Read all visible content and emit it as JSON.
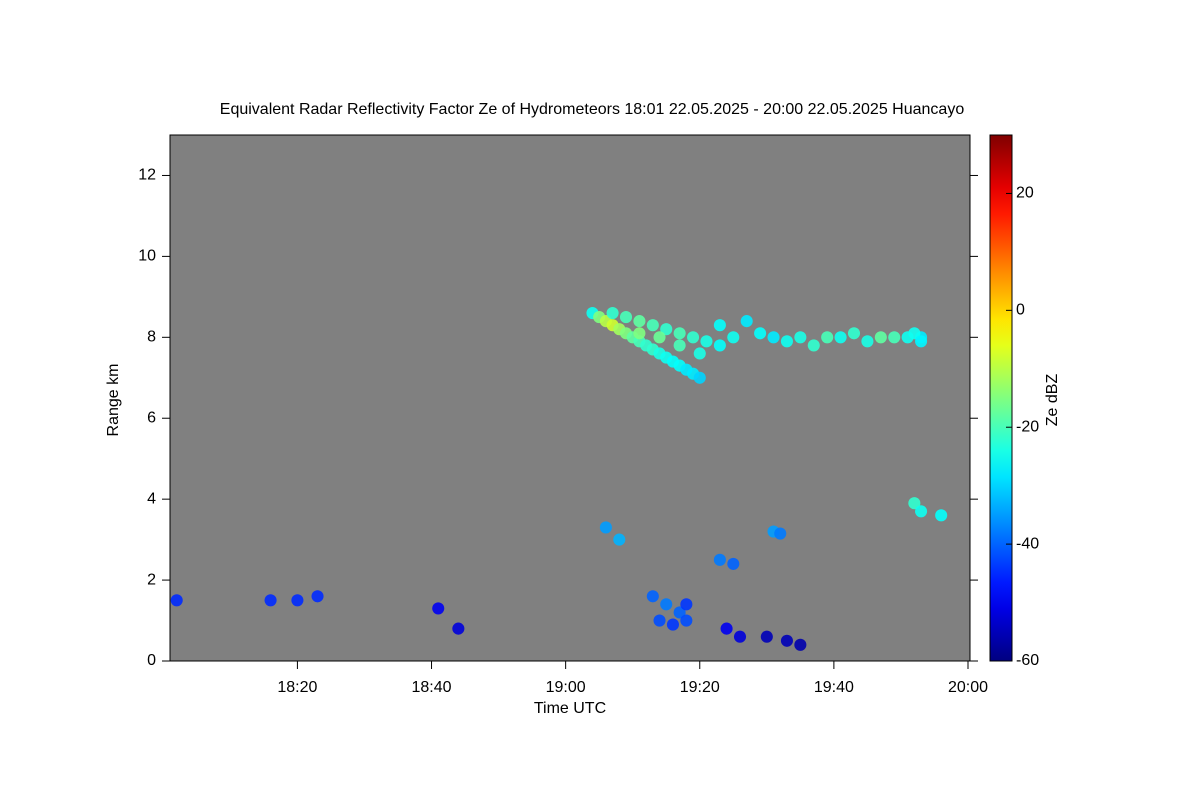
{
  "chart_data": {
    "type": "heatmap",
    "title": "Equivalent Radar Reflectivity Factor Ze of Hydrometeors   18:01 22.05.2025 - 20:00 22.05.2025 Huancayo",
    "x_label": "Time UTC",
    "y_label": "Range km",
    "colorbar_label": "Ze dBZ",
    "xlim": [
      1081,
      1200
    ],
    "xticks": [
      {
        "value": 1100,
        "label": "18:20"
      },
      {
        "value": 1120,
        "label": "18:40"
      },
      {
        "value": 1140,
        "label": "19:00"
      },
      {
        "value": 1160,
        "label": "19:20"
      },
      {
        "value": 1180,
        "label": "19:40"
      },
      {
        "value": 1200,
        "label": "20:00"
      }
    ],
    "ylim": [
      0,
      13
    ],
    "yticks": [
      0,
      2,
      4,
      6,
      8,
      10,
      12
    ],
    "zlim": [
      -60,
      30
    ],
    "zticks": [
      -60,
      -40,
      -20,
      0,
      20
    ],
    "colormap": "jet",
    "background": "#808080",
    "x": [
      1144,
      1145,
      1146,
      1147,
      1148,
      1149,
      1150,
      1151,
      1152,
      1153,
      1154,
      1155,
      1156,
      1157,
      1158,
      1159,
      1160,
      1147,
      1149,
      1151,
      1153,
      1155,
      1157,
      1159,
      1161,
      1151,
      1154,
      1157,
      1160,
      1163,
      1163,
      1165,
      1167,
      1169,
      1171,
      1173,
      1175,
      1177,
      1179,
      1181,
      1183,
      1185,
      1187,
      1189,
      1191,
      1193,
      1192,
      1193,
      1192,
      1193,
      1196,
      1146,
      1148,
      1171,
      1172,
      1163,
      1165,
      1153,
      1155,
      1157,
      1154,
      1156,
      1158,
      1158,
      1164,
      1166,
      1170,
      1173,
      1175,
      1082,
      1096,
      1100,
      1103,
      1121,
      1124
    ],
    "y": [
      8.6,
      8.5,
      8.4,
      8.3,
      8.2,
      8.1,
      8.0,
      7.9,
      7.8,
      7.7,
      7.6,
      7.5,
      7.4,
      7.3,
      7.2,
      7.1,
      7.0,
      8.6,
      8.5,
      8.4,
      8.3,
      8.2,
      8.1,
      8.0,
      7.9,
      8.1,
      8.0,
      7.8,
      7.6,
      7.8,
      8.3,
      8.0,
      8.4,
      8.1,
      8.0,
      7.9,
      8.0,
      7.8,
      8.0,
      8.0,
      8.1,
      7.9,
      8.0,
      8.0,
      8.0,
      8.0,
      8.1,
      7.9,
      3.9,
      3.7,
      3.6,
      3.3,
      3.0,
      3.2,
      3.15,
      2.5,
      2.4,
      1.6,
      1.4,
      1.2,
      1.0,
      0.9,
      1.0,
      1.4,
      0.8,
      0.6,
      0.6,
      0.5,
      0.4,
      1.5,
      1.5,
      1.5,
      1.6,
      1.3,
      0.8
    ],
    "z": [
      -25,
      -15,
      -10,
      -8,
      -12,
      -15,
      -18,
      -20,
      -22,
      -22,
      -24,
      -25,
      -26,
      -26,
      -28,
      -28,
      -30,
      -22,
      -20,
      -18,
      -20,
      -22,
      -20,
      -22,
      -24,
      -15,
      -17,
      -20,
      -24,
      -26,
      -26,
      -25,
      -28,
      -26,
      -28,
      -25,
      -24,
      -22,
      -20,
      -25,
      -22,
      -24,
      -18,
      -20,
      -25,
      -28,
      -25,
      -27,
      -22,
      -25,
      -26,
      -35,
      -33,
      -35,
      -38,
      -38,
      -40,
      -40,
      -38,
      -40,
      -42,
      -44,
      -42,
      -44,
      -50,
      -52,
      -55,
      -55,
      -56,
      -45,
      -45,
      -45,
      -45,
      -50,
      -52
    ]
  }
}
